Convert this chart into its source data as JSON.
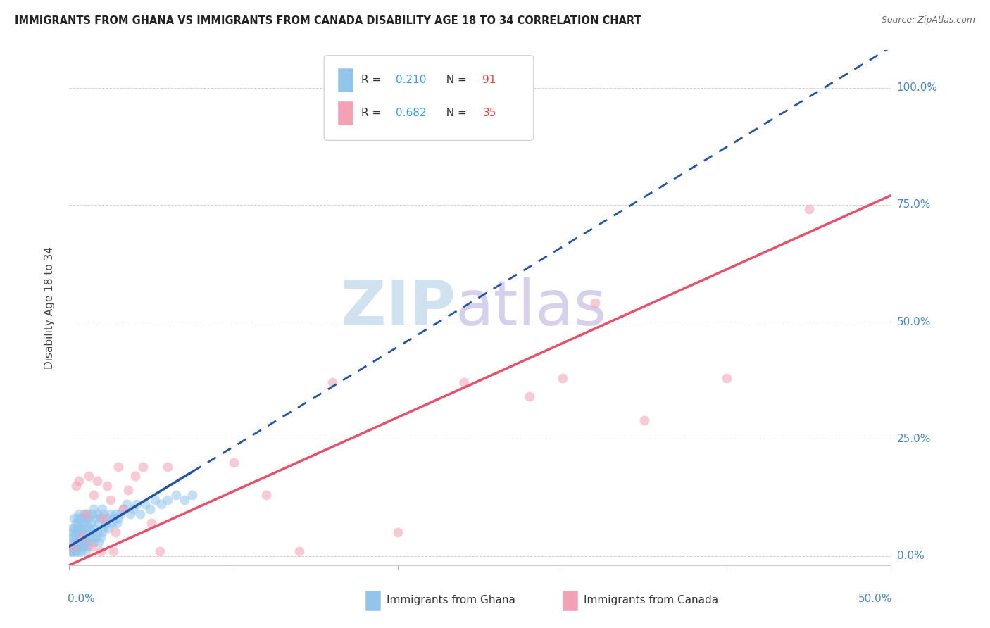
{
  "title": "IMMIGRANTS FROM GHANA VS IMMIGRANTS FROM CANADA DISABILITY AGE 18 TO 34 CORRELATION CHART",
  "source": "Source: ZipAtlas.com",
  "ylabel": "Disability Age 18 to 34",
  "ytick_labels": [
    "0.0%",
    "25.0%",
    "50.0%",
    "75.0%",
    "100.0%"
  ],
  "ytick_values": [
    0.0,
    0.25,
    0.5,
    0.75,
    1.0
  ],
  "xlim": [
    0.0,
    0.5
  ],
  "ylim": [
    -0.02,
    1.08
  ],
  "ghana_color": "#92C5EC",
  "canada_color": "#F4A0B5",
  "ghana_trend_color": "#2255AA",
  "canada_trend_color": "#E8506A",
  "watermark_zip": "ZIP",
  "watermark_atlas": "atlas",
  "ghana_points_x": [
    0.001,
    0.001,
    0.001,
    0.002,
    0.002,
    0.002,
    0.002,
    0.003,
    0.003,
    0.003,
    0.003,
    0.003,
    0.004,
    0.004,
    0.004,
    0.004,
    0.005,
    0.005,
    0.005,
    0.005,
    0.005,
    0.005,
    0.006,
    0.006,
    0.006,
    0.006,
    0.007,
    0.007,
    0.007,
    0.007,
    0.008,
    0.008,
    0.008,
    0.008,
    0.009,
    0.009,
    0.009,
    0.01,
    0.01,
    0.01,
    0.01,
    0.01,
    0.011,
    0.011,
    0.011,
    0.012,
    0.012,
    0.012,
    0.013,
    0.013,
    0.014,
    0.014,
    0.015,
    0.015,
    0.015,
    0.016,
    0.016,
    0.017,
    0.017,
    0.018,
    0.018,
    0.019,
    0.019,
    0.02,
    0.02,
    0.021,
    0.021,
    0.022,
    0.023,
    0.024,
    0.025,
    0.026,
    0.027,
    0.028,
    0.029,
    0.03,
    0.031,
    0.033,
    0.035,
    0.037,
    0.039,
    0.041,
    0.043,
    0.046,
    0.049,
    0.052,
    0.056,
    0.06,
    0.065,
    0.07,
    0.075
  ],
  "ghana_points_y": [
    0.02,
    0.04,
    0.01,
    0.03,
    0.05,
    0.01,
    0.06,
    0.02,
    0.04,
    0.01,
    0.06,
    0.08,
    0.03,
    0.05,
    0.01,
    0.07,
    0.02,
    0.05,
    0.08,
    0.01,
    0.06,
    0.03,
    0.04,
    0.07,
    0.02,
    0.09,
    0.03,
    0.06,
    0.01,
    0.08,
    0.05,
    0.02,
    0.07,
    0.03,
    0.06,
    0.09,
    0.02,
    0.04,
    0.07,
    0.01,
    0.08,
    0.03,
    0.05,
    0.09,
    0.02,
    0.06,
    0.03,
    0.08,
    0.04,
    0.07,
    0.05,
    0.09,
    0.03,
    0.06,
    0.1,
    0.04,
    0.08,
    0.05,
    0.09,
    0.03,
    0.07,
    0.04,
    0.08,
    0.05,
    0.1,
    0.06,
    0.09,
    0.07,
    0.08,
    0.06,
    0.09,
    0.07,
    0.08,
    0.09,
    0.07,
    0.08,
    0.09,
    0.1,
    0.11,
    0.09,
    0.1,
    0.11,
    0.09,
    0.11,
    0.1,
    0.12,
    0.11,
    0.12,
    0.13,
    0.12,
    0.13
  ],
  "canada_points_x": [
    0.002,
    0.004,
    0.006,
    0.008,
    0.01,
    0.012,
    0.014,
    0.015,
    0.017,
    0.019,
    0.021,
    0.023,
    0.025,
    0.027,
    0.028,
    0.03,
    0.033,
    0.036,
    0.04,
    0.045,
    0.05,
    0.055,
    0.06,
    0.1,
    0.12,
    0.14,
    0.16,
    0.2,
    0.24,
    0.28,
    0.3,
    0.32,
    0.35,
    0.4,
    0.45
  ],
  "canada_points_y": [
    0.02,
    0.15,
    0.16,
    0.04,
    0.09,
    0.17,
    0.02,
    0.13,
    0.16,
    0.01,
    0.08,
    0.15,
    0.12,
    0.01,
    0.05,
    0.19,
    0.1,
    0.14,
    0.17,
    0.19,
    0.07,
    0.01,
    0.19,
    0.2,
    0.13,
    0.01,
    0.37,
    0.05,
    0.37,
    0.34,
    0.38,
    0.54,
    0.29,
    0.38,
    0.74
  ],
  "ghana_trend_x": [
    0.0,
    0.075
  ],
  "ghana_trend_y": [
    0.02,
    0.18
  ],
  "canada_trend_x": [
    0.0,
    0.5
  ],
  "canada_trend_y": [
    -0.02,
    0.77
  ]
}
